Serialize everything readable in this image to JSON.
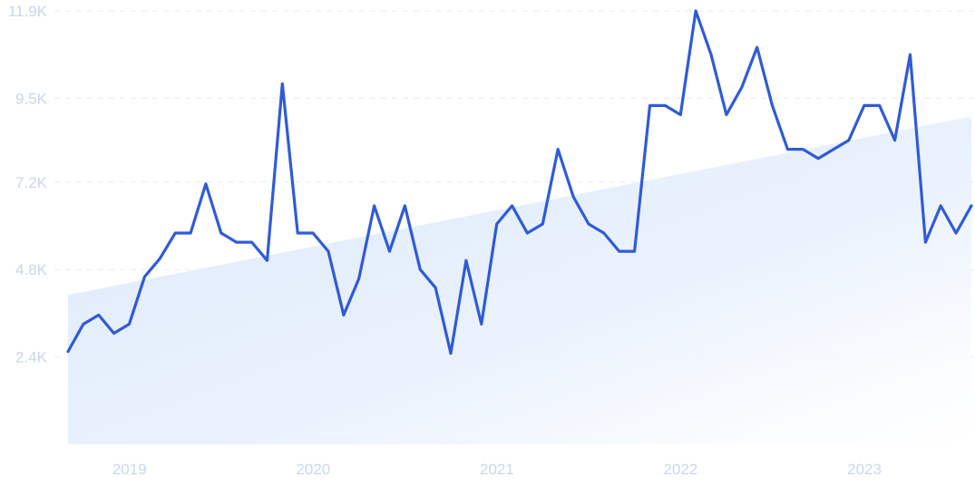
{
  "chart_data": {
    "type": "line",
    "title": "",
    "xlabel": "",
    "ylabel": "",
    "y_ticks": [
      "11.9K",
      "9.5K",
      "7.2K",
      "4.8K",
      "2.4K"
    ],
    "y_tick_values": [
      11900,
      9500,
      7200,
      4800,
      2400
    ],
    "x_ticks": [
      "2019",
      "2020",
      "2021",
      "2022",
      "2023"
    ],
    "ylim": [
      0,
      11900
    ],
    "xlim": [
      "2018-11",
      "2023-10"
    ],
    "grid": true,
    "colors": {
      "line": "#2f5bd8",
      "trend_fill": "#dbe8fb",
      "ticks": "#c9d7ee",
      "grid": "#e6ebf3"
    },
    "trend": {
      "start": {
        "date": "2018-11",
        "value": 4100
      },
      "end": {
        "date": "2023-10",
        "value": 9000
      }
    },
    "series": [
      {
        "x": [
          "2018-11",
          "2018-12",
          "2019-01",
          "2019-02",
          "2019-03",
          "2019-04",
          "2019-05",
          "2019-06",
          "2019-07",
          "2019-08",
          "2019-09",
          "2019-10",
          "2019-11",
          "2019-12",
          "2020-01",
          "2020-02",
          "2020-03",
          "2020-04",
          "2020-05",
          "2020-06",
          "2020-07",
          "2020-08",
          "2020-09",
          "2020-10",
          "2020-11",
          "2020-12",
          "2021-01",
          "2021-02",
          "2021-03",
          "2021-04",
          "2021-05",
          "2021-06",
          "2021-07",
          "2021-08",
          "2021-09",
          "2021-10",
          "2021-11",
          "2021-12",
          "2022-01",
          "2022-02",
          "2022-03",
          "2022-04",
          "2022-05",
          "2022-06",
          "2022-07",
          "2022-08",
          "2022-09",
          "2022-10",
          "2022-11",
          "2022-12",
          "2023-01",
          "2023-02",
          "2023-03",
          "2023-04",
          "2023-05",
          "2023-06",
          "2023-07",
          "2023-08",
          "2023-09",
          "2023-10"
        ],
        "values": [
          2550,
          3300,
          3550,
          3050,
          3300,
          4600,
          5100,
          5800,
          5800,
          7150,
          5800,
          5550,
          5550,
          5050,
          9900,
          5800,
          5800,
          5300,
          3550,
          4550,
          6550,
          5300,
          6550,
          4800,
          4300,
          2500,
          5050,
          3300,
          6050,
          6550,
          5800,
          6050,
          8100,
          6800,
          6050,
          5800,
          5300,
          5300,
          9300,
          9300,
          9050,
          11900,
          10700,
          9050,
          9800,
          10900,
          9300,
          8100,
          8100,
          7850,
          8100,
          8350,
          9300,
          9300,
          8350,
          10700,
          5550,
          6550,
          5800,
          6550
        ]
      }
    ]
  }
}
